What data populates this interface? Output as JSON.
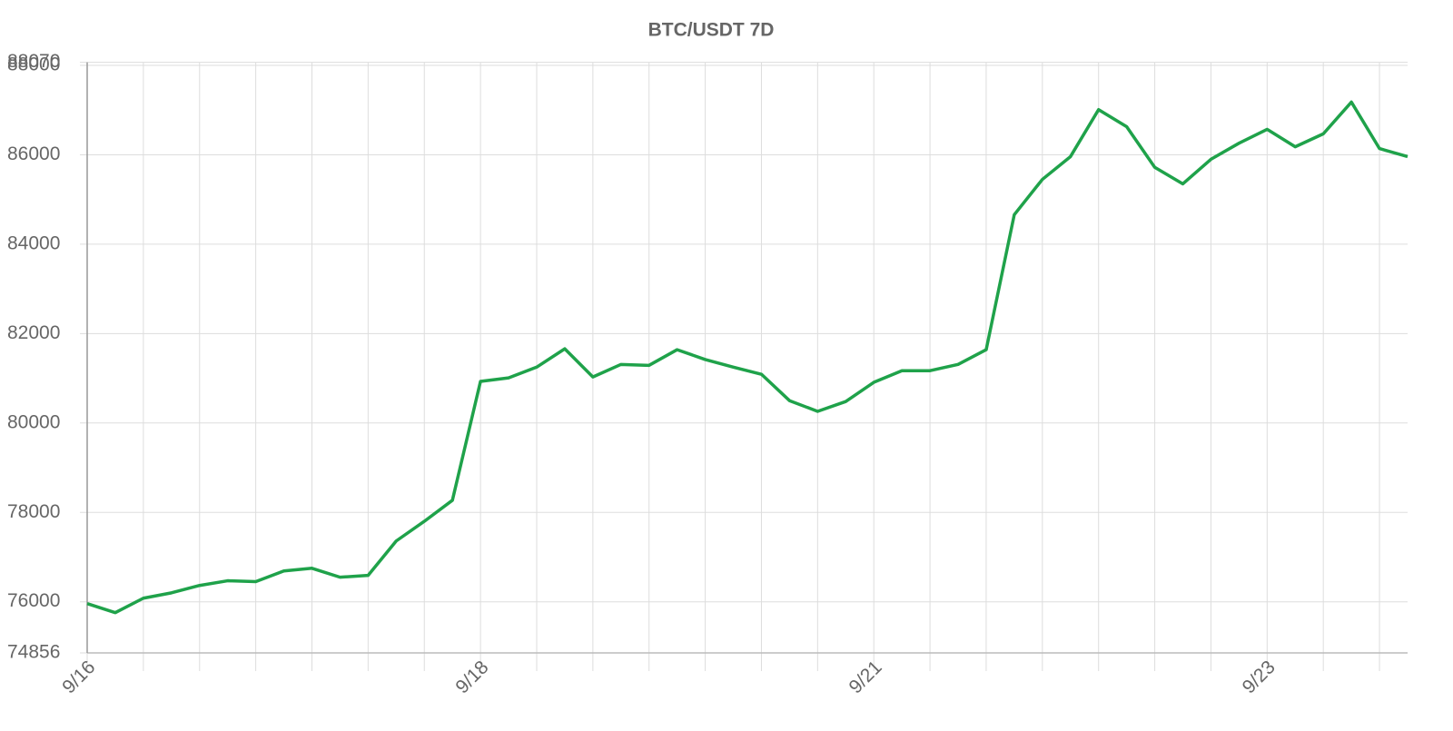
{
  "chart_data": {
    "type": "line",
    "title": "BTC/USDT 7D",
    "categories": [
      "9/16",
      null,
      null,
      null,
      null,
      null,
      null,
      null,
      null,
      null,
      null,
      null,
      null,
      null,
      "9/18",
      null,
      null,
      null,
      null,
      null,
      null,
      null,
      null,
      null,
      null,
      null,
      null,
      null,
      "9/21",
      null,
      null,
      null,
      null,
      null,
      null,
      null,
      null,
      null,
      null,
      null,
      null,
      null,
      "9/23",
      null,
      null,
      null,
      null,
      null
    ],
    "values": [
      75960,
      75757,
      76080,
      76200,
      76365,
      76470,
      76450,
      76690,
      76750,
      76550,
      76590,
      77360,
      77800,
      78270,
      80930,
      81010,
      81250,
      81660,
      81030,
      81310,
      81290,
      81640,
      81420,
      81250,
      81090,
      80500,
      80260,
      80480,
      80910,
      81170,
      81170,
      81310,
      81640,
      84660,
      85450,
      85960,
      87010,
      86630,
      85720,
      85350,
      85900,
      86260,
      86570,
      86180,
      86470,
      87180,
      86140,
      85960
    ],
    "color": "#1fa24a",
    "ylim": [
      74856,
      88070
    ],
    "yticks": [
      74856,
      76000,
      78000,
      80000,
      82000,
      84000,
      86000,
      88000,
      88070
    ],
    "grid": true
  }
}
